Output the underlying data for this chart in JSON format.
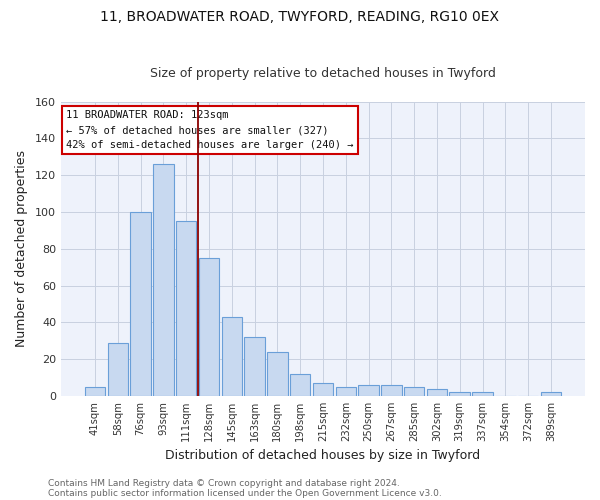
{
  "title1": "11, BROADWATER ROAD, TWYFORD, READING, RG10 0EX",
  "title2": "Size of property relative to detached houses in Twyford",
  "xlabel": "Distribution of detached houses by size in Twyford",
  "ylabel": "Number of detached properties",
  "bar_labels": [
    "41sqm",
    "58sqm",
    "76sqm",
    "93sqm",
    "111sqm",
    "128sqm",
    "145sqm",
    "163sqm",
    "180sqm",
    "198sqm",
    "215sqm",
    "232sqm",
    "250sqm",
    "267sqm",
    "285sqm",
    "302sqm",
    "319sqm",
    "337sqm",
    "354sqm",
    "372sqm",
    "389sqm"
  ],
  "bar_values": [
    5,
    29,
    100,
    126,
    95,
    75,
    43,
    32,
    24,
    12,
    7,
    5,
    6,
    6,
    5,
    4,
    2,
    2,
    0,
    0,
    2
  ],
  "bar_color": "#c8d9f0",
  "bar_edge_color": "#6a9fd8",
  "vline_color": "#8b0000",
  "vline_pos": 4.5,
  "ylim": [
    0,
    160
  ],
  "yticks": [
    0,
    20,
    40,
    60,
    80,
    100,
    120,
    140,
    160
  ],
  "annotation_title": "11 BROADWATER ROAD: 123sqm",
  "annotation_line1": "← 57% of detached houses are smaller (327)",
  "annotation_line2": "42% of semi-detached houses are larger (240) →",
  "footer1": "Contains HM Land Registry data © Crown copyright and database right 2024.",
  "footer2": "Contains public sector information licensed under the Open Government Licence v3.0.",
  "bg_color": "#ffffff",
  "plot_bg_color": "#eef2fb",
  "grid_color": "#c8d0e0"
}
